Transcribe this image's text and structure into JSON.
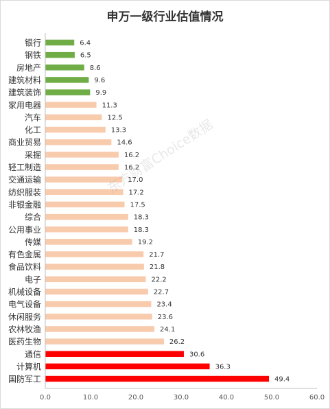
{
  "watermark": "东方财富Choice数据",
  "colors": {
    "low": "#70ad47",
    "mid": "#f8cbad",
    "high": "#ff0000"
  },
  "chart_data": {
    "type": "bar",
    "orientation": "horizontal",
    "title": "申万一级行业估值情况",
    "categories": [
      "银行",
      "钢铁",
      "房地产",
      "建筑材料",
      "建筑装饰",
      "家用电器",
      "汽车",
      "化工",
      "商业贸易",
      "采掘",
      "轻工制造",
      "交通运输",
      "纺织服装",
      "非银金融",
      "综合",
      "公用事业",
      "传媒",
      "有色金属",
      "食品饮料",
      "电子",
      "机械设备",
      "电气设备",
      "休闲服务",
      "农林牧渔",
      "医药生物",
      "通信",
      "计算机",
      "国防军工"
    ],
    "values": [
      6.4,
      6.5,
      8.6,
      9.6,
      9.9,
      11.3,
      12.5,
      13.3,
      14.6,
      16.2,
      16.2,
      17.0,
      17.2,
      17.5,
      18.3,
      18.3,
      19.2,
      21.7,
      21.8,
      22.2,
      22.7,
      23.4,
      23.6,
      24.1,
      26.2,
      30.6,
      36.3,
      49.4
    ],
    "value_labels": [
      "6.4",
      "6.5",
      "8.6",
      "9.6",
      "9.9",
      "11.3",
      "12.5",
      "13.3",
      "14.6",
      "16.2",
      "16.2",
      "17.0",
      "17.2",
      "17.5",
      "18.3",
      "18.3",
      "19.2",
      "21.7",
      "21.8",
      "22.2",
      "22.7",
      "23.4",
      "23.6",
      "24.1",
      "26.2",
      "30.6",
      "36.3",
      "49.4"
    ],
    "bar_groups": [
      "low",
      "low",
      "low",
      "low",
      "low",
      "mid",
      "mid",
      "mid",
      "mid",
      "mid",
      "mid",
      "mid",
      "mid",
      "mid",
      "mid",
      "mid",
      "mid",
      "mid",
      "mid",
      "mid",
      "mid",
      "mid",
      "mid",
      "mid",
      "mid",
      "high",
      "high",
      "high"
    ],
    "xlim": [
      0,
      60
    ],
    "xticks": [
      "0.0",
      "10.0",
      "20.0",
      "30.0",
      "40.0",
      "50.0",
      "60.0"
    ],
    "grid": false,
    "legend": "none"
  }
}
